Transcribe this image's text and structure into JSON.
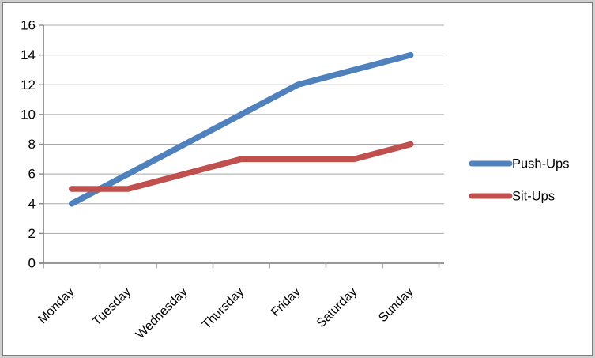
{
  "chart_data": {
    "type": "line",
    "categories": [
      "Monday",
      "Tuesday",
      "Wednesday",
      "Thursday",
      "Friday",
      "Saturday",
      "Sunday"
    ],
    "series": [
      {
        "name": "Push-Ups",
        "color": "#4F81BD",
        "values": [
          4,
          6,
          8,
          10,
          12,
          13,
          14
        ]
      },
      {
        "name": "Sit-Ups",
        "color": "#C0504D",
        "values": [
          5,
          5,
          6,
          7,
          7,
          7,
          8
        ]
      }
    ],
    "title": "",
    "xlabel": "",
    "ylabel": "",
    "ylim": [
      0,
      16
    ],
    "ytick_step": 2,
    "y_tick_labels": [
      "0",
      "2",
      "4",
      "6",
      "8",
      "10",
      "12",
      "14",
      "16"
    ],
    "grid": true,
    "legend_position": "right",
    "x_label_rotation_deg": -45
  },
  "colors": {
    "background": "#FFFFFF",
    "frame_border_outer": "#CFCFCF",
    "frame_border_inner": "#7C7C7C",
    "gridline": "#A8A8A8",
    "axis": "#8C8C8C",
    "label_text": "#000000",
    "series_push_ups": "#4F81BD",
    "series_sit_ups": "#C0504D"
  }
}
